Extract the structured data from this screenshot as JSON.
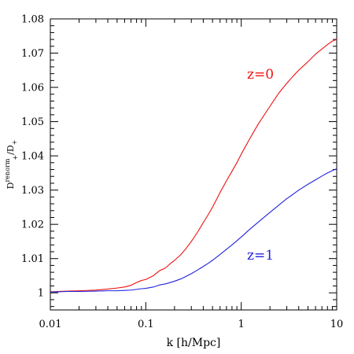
{
  "chart_data": {
    "type": "line",
    "xscale": "log",
    "xlim": [
      0.01,
      10
    ],
    "ylim": [
      0.995,
      1.08
    ],
    "xlabel": "k [h/Mpc]",
    "ylabel": {
      "main": "D",
      "sup": "renorm",
      "sub": "+",
      "tail": "/D",
      "tail_sub": "+"
    },
    "x_ticks": [
      {
        "value": 0.01,
        "label": "0.01"
      },
      {
        "value": 0.1,
        "label": "0.1"
      },
      {
        "value": 1,
        "label": "1"
      },
      {
        "value": 10,
        "label": "10"
      }
    ],
    "y_ticks": [
      {
        "value": 1.0,
        "label": "1"
      },
      {
        "value": 1.01,
        "label": "1.01"
      },
      {
        "value": 1.02,
        "label": "1.02"
      },
      {
        "value": 1.03,
        "label": "1.03"
      },
      {
        "value": 1.04,
        "label": "1.04"
      },
      {
        "value": 1.05,
        "label": "1.05"
      },
      {
        "value": 1.06,
        "label": "1.06"
      },
      {
        "value": 1.07,
        "label": "1.07"
      },
      {
        "value": 1.08,
        "label": "1.08"
      }
    ],
    "series": [
      {
        "label": "z=0",
        "color": "#ee1111",
        "label_pos": {
          "x": 1.15,
          "y": 1.0625
        },
        "x": [
          0.01,
          0.015,
          0.02,
          0.03,
          0.04,
          0.05,
          0.06,
          0.07,
          0.08,
          0.09,
          0.1,
          0.12,
          0.14,
          0.16,
          0.18,
          0.2,
          0.23,
          0.26,
          0.3,
          0.35,
          0.4,
          0.45,
          0.5,
          0.6,
          0.7,
          0.8,
          0.9,
          1.0,
          1.2,
          1.5,
          2.0,
          2.5,
          3.0,
          3.5,
          4.0,
          5.0,
          6.0,
          7.0,
          8.0,
          9.0,
          10.0
        ],
        "y": [
          1.0003,
          1.0005,
          1.0006,
          1.0008,
          1.0011,
          1.0014,
          1.0017,
          1.0022,
          1.003,
          1.0036,
          1.0039,
          1.005,
          1.0065,
          1.0072,
          1.0085,
          1.0095,
          1.011,
          1.0127,
          1.015,
          1.0178,
          1.0205,
          1.0228,
          1.025,
          1.0293,
          1.0327,
          1.0355,
          1.038,
          1.0405,
          1.0445,
          1.0492,
          1.0545,
          1.0585,
          1.0612,
          1.0633,
          1.065,
          1.0675,
          1.0697,
          1.0712,
          1.0725,
          1.0735,
          1.074
        ]
      },
      {
        "label": "z=1",
        "color": "#2222dd",
        "label_pos": {
          "x": 1.15,
          "y": 1.0097
        },
        "x": [
          0.01,
          0.015,
          0.02,
          0.03,
          0.04,
          0.05,
          0.06,
          0.07,
          0.08,
          0.09,
          0.1,
          0.12,
          0.14,
          0.16,
          0.18,
          0.2,
          0.23,
          0.26,
          0.3,
          0.35,
          0.4,
          0.45,
          0.5,
          0.6,
          0.7,
          0.8,
          0.9,
          1.0,
          1.2,
          1.5,
          2.0,
          2.5,
          3.0,
          3.5,
          4.0,
          5.0,
          6.0,
          7.0,
          8.0,
          9.0,
          10.0
        ],
        "y": [
          1.0002,
          1.0004,
          1.0004,
          1.0005,
          1.0006,
          1.0006,
          1.0007,
          1.0008,
          1.001,
          1.0012,
          1.0013,
          1.0017,
          1.0023,
          1.0026,
          1.003,
          1.0034,
          1.004,
          1.0047,
          1.0056,
          1.0067,
          1.0077,
          1.0086,
          1.0095,
          1.0112,
          1.0127,
          1.014,
          1.0152,
          1.0163,
          1.0183,
          1.0206,
          1.0235,
          1.0257,
          1.0275,
          1.0288,
          1.03,
          1.0317,
          1.033,
          1.0341,
          1.035,
          1.0357,
          1.0362
        ]
      }
    ],
    "grid": false,
    "legend": "none"
  }
}
